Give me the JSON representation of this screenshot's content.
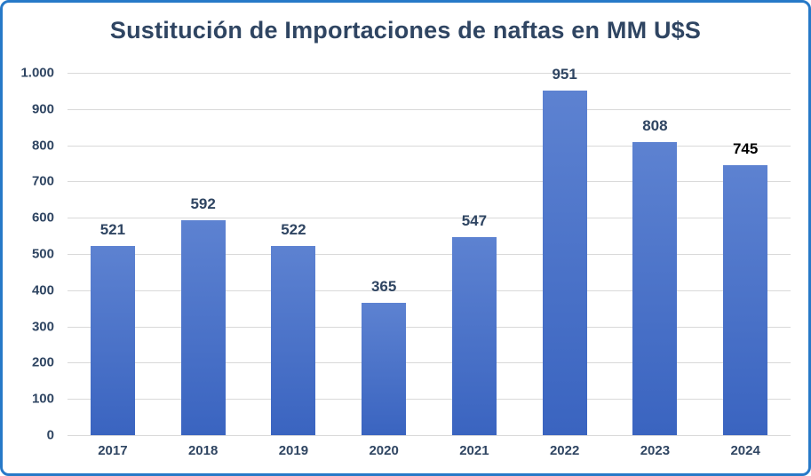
{
  "chart_data": {
    "type": "bar",
    "title": "Sustitución de Importaciones de naftas en MM U$S",
    "categories": [
      "2017",
      "2018",
      "2019",
      "2020",
      "2021",
      "2022",
      "2023",
      "2024"
    ],
    "values": [
      521,
      592,
      522,
      365,
      547,
      951,
      808,
      745
    ],
    "value_labels": [
      "521",
      "592",
      "522",
      "365",
      "547",
      "951",
      "808",
      "745"
    ],
    "value_label_colors": [
      "#2f4562",
      "#2f4562",
      "#2f4562",
      "#2f4562",
      "#2f4562",
      "#2f4562",
      "#2f4562",
      "#000000"
    ],
    "xlabel": "",
    "ylabel": "",
    "ylim": [
      0,
      1000
    ],
    "ytick_interval": 100,
    "ytick_labels": [
      "0",
      "100",
      "200",
      "300",
      "400",
      "500",
      "600",
      "700",
      "800",
      "900",
      "1.000"
    ],
    "grid": "horizontal",
    "legend": "none",
    "colors": {
      "bar_gradient_top": "#5d82d1",
      "bar_gradient_bottom": "#3a64c0",
      "gridline": "#d9d9d9",
      "axis_label": "#2f4562",
      "title": "#2f4562",
      "frame_border": "#2779c8",
      "background": "#ffffff"
    }
  }
}
